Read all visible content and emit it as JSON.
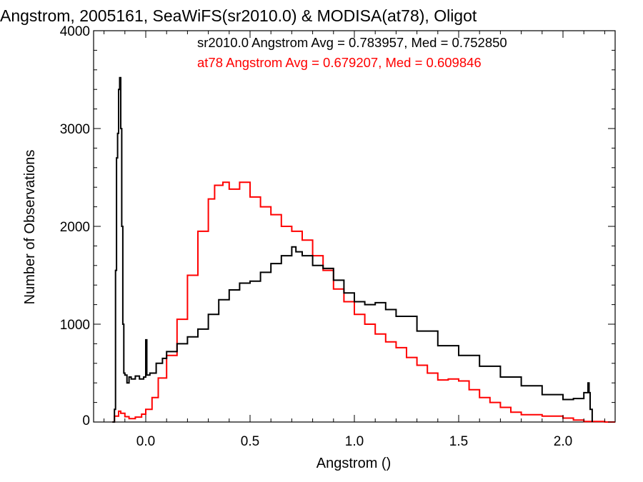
{
  "chart_data": {
    "type": "line",
    "title": "Angstrom, 2005161, SeaWiFS(sr2010.0) & MODISA(at78), Oligot",
    "xlabel": "Angstrom ()",
    "ylabel": "Number of Observations",
    "xlim": [
      -0.25,
      2.25
    ],
    "ylim": [
      0,
      4000
    ],
    "x_ticks": [
      0.0,
      0.5,
      1.0,
      1.5,
      2.0
    ],
    "x_tick_labels": [
      "0.0",
      "0.5",
      "1.0",
      "1.5",
      "2.0"
    ],
    "y_ticks": [
      0,
      1000,
      2000,
      3000,
      4000
    ],
    "y_tick_labels": [
      "0",
      "1000",
      "2000",
      "3000",
      "4000"
    ],
    "grid": false,
    "legend_placement": "top-right",
    "step_style": "histogram",
    "annotations": [
      {
        "text": "sr2010.0 Angstrom Avg = 0.783957, Med = 0.752850",
        "color": "#000000"
      },
      {
        "text": "at78 Angstrom Avg = 0.679207, Med = 0.609846",
        "color": "#ff0000"
      }
    ],
    "series": [
      {
        "color": "#000000",
        "points": [
          [
            -0.16,
            0
          ],
          [
            -0.15,
            130
          ],
          [
            -0.145,
            1550
          ],
          [
            -0.14,
            2700
          ],
          [
            -0.135,
            2950
          ],
          [
            -0.13,
            3400
          ],
          [
            -0.125,
            3520
          ],
          [
            -0.12,
            3000
          ],
          [
            -0.115,
            2000
          ],
          [
            -0.11,
            1000
          ],
          [
            -0.105,
            500
          ],
          [
            -0.1,
            480
          ],
          [
            -0.09,
            400
          ],
          [
            -0.08,
            460
          ],
          [
            -0.07,
            440
          ],
          [
            -0.05,
            470
          ],
          [
            -0.03,
            440
          ],
          [
            -0.01,
            460
          ],
          [
            0.0,
            840
          ],
          [
            0.005,
            480
          ],
          [
            0.02,
            500
          ],
          [
            0.05,
            600
          ],
          [
            0.08,
            650
          ],
          [
            0.1,
            720
          ],
          [
            0.15,
            800
          ],
          [
            0.2,
            870
          ],
          [
            0.25,
            950
          ],
          [
            0.3,
            1100
          ],
          [
            0.35,
            1250
          ],
          [
            0.4,
            1350
          ],
          [
            0.45,
            1420
          ],
          [
            0.5,
            1440
          ],
          [
            0.55,
            1530
          ],
          [
            0.6,
            1620
          ],
          [
            0.65,
            1700
          ],
          [
            0.7,
            1790
          ],
          [
            0.72,
            1740
          ],
          [
            0.75,
            1700
          ],
          [
            0.8,
            1600
          ],
          [
            0.85,
            1570
          ],
          [
            0.9,
            1450
          ],
          [
            0.95,
            1320
          ],
          [
            1.0,
            1230
          ],
          [
            1.05,
            1200
          ],
          [
            1.1,
            1220
          ],
          [
            1.15,
            1150
          ],
          [
            1.2,
            1080
          ],
          [
            1.3,
            930
          ],
          [
            1.4,
            780
          ],
          [
            1.5,
            680
          ],
          [
            1.6,
            570
          ],
          [
            1.7,
            460
          ],
          [
            1.8,
            370
          ],
          [
            1.9,
            280
          ],
          [
            2.0,
            230
          ],
          [
            2.05,
            240
          ],
          [
            2.1,
            300
          ],
          [
            2.12,
            400
          ],
          [
            2.125,
            300
          ],
          [
            2.13,
            130
          ],
          [
            2.14,
            0
          ]
        ]
      },
      {
        "color": "#ff0000",
        "points": [
          [
            -0.16,
            0
          ],
          [
            -0.15,
            60
          ],
          [
            -0.13,
            110
          ],
          [
            -0.12,
            90
          ],
          [
            -0.1,
            55
          ],
          [
            -0.08,
            35
          ],
          [
            -0.05,
            50
          ],
          [
            -0.02,
            80
          ],
          [
            0.0,
            130
          ],
          [
            0.03,
            250
          ],
          [
            0.06,
            450
          ],
          [
            0.1,
            680
          ],
          [
            0.15,
            1050
          ],
          [
            0.2,
            1500
          ],
          [
            0.25,
            1950
          ],
          [
            0.3,
            2280
          ],
          [
            0.33,
            2420
          ],
          [
            0.37,
            2450
          ],
          [
            0.4,
            2380
          ],
          [
            0.45,
            2450
          ],
          [
            0.5,
            2300
          ],
          [
            0.55,
            2200
          ],
          [
            0.6,
            2120
          ],
          [
            0.65,
            2000
          ],
          [
            0.7,
            1950
          ],
          [
            0.75,
            1860
          ],
          [
            0.8,
            1700
          ],
          [
            0.85,
            1550
          ],
          [
            0.9,
            1360
          ],
          [
            0.95,
            1230
          ],
          [
            1.0,
            1100
          ],
          [
            1.05,
            1000
          ],
          [
            1.1,
            900
          ],
          [
            1.15,
            820
          ],
          [
            1.2,
            760
          ],
          [
            1.25,
            660
          ],
          [
            1.3,
            580
          ],
          [
            1.35,
            500
          ],
          [
            1.4,
            430
          ],
          [
            1.45,
            440
          ],
          [
            1.5,
            420
          ],
          [
            1.55,
            330
          ],
          [
            1.6,
            250
          ],
          [
            1.65,
            200
          ],
          [
            1.7,
            150
          ],
          [
            1.75,
            100
          ],
          [
            1.8,
            75
          ],
          [
            1.9,
            60
          ],
          [
            2.0,
            40
          ],
          [
            2.05,
            20
          ],
          [
            2.1,
            5
          ],
          [
            2.2,
            0
          ],
          [
            2.25,
            0
          ]
        ]
      }
    ]
  }
}
